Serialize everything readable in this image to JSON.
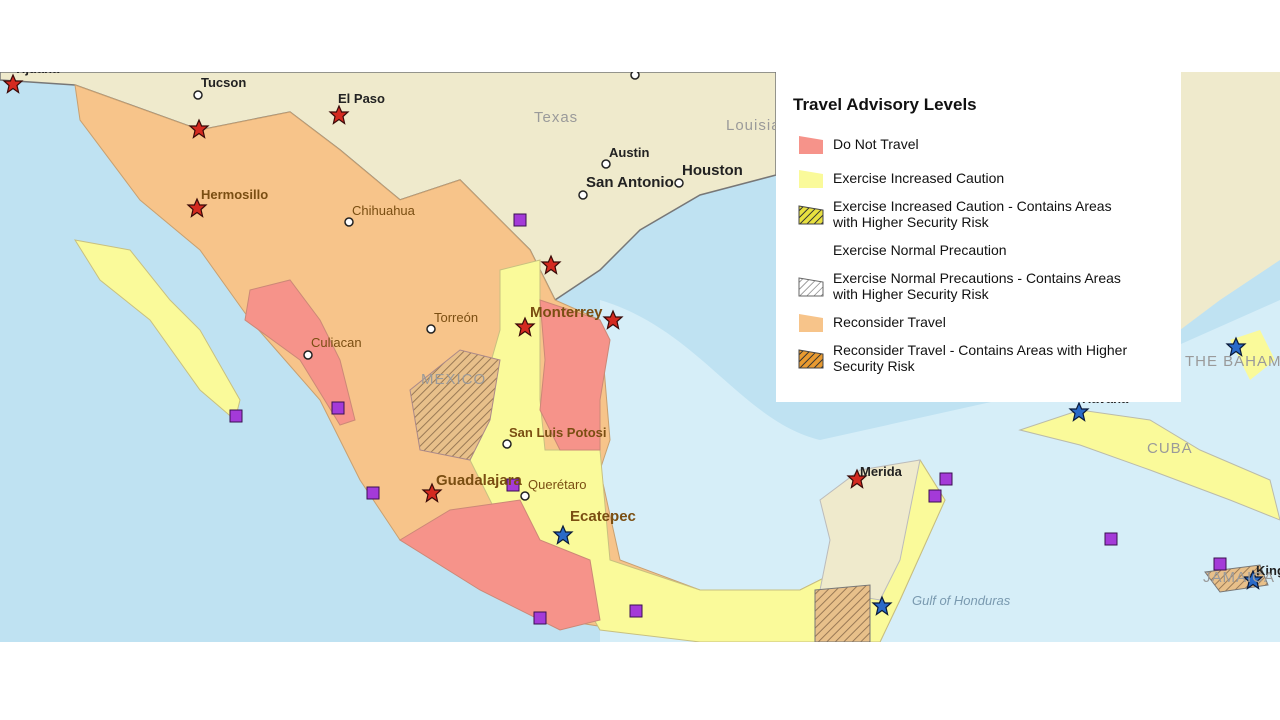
{
  "legend": {
    "title": "Travel Advisory Levels",
    "items": [
      "Do Not Travel",
      "Exercise Increased Caution",
      "Exercise Increased Caution - Contains Areas with Higher Security Risk",
      "Exercise Normal Precaution",
      "Exercise Normal Precautions - Contains Areas with Higher Security Risk",
      "Reconsider Travel",
      "Reconsider Travel - Contains Areas with Higher Security Risk"
    ]
  },
  "map_labels": {
    "cities": [
      "Tijuana",
      "Tucson",
      "El Paso",
      "Austin",
      "Houston",
      "San Antonio",
      "Hermosillo",
      "Chihuahua",
      "Monterrey",
      "Torreón",
      "Culiacan",
      "San Luis Potosi",
      "Guadalajara",
      "Querétaro",
      "Ecatepec",
      "Merida",
      "Havana",
      "Kingston"
    ],
    "regions": [
      "Texas",
      "Louisia",
      "MEXICO",
      "CUBA",
      "THE BAHAMAS",
      "JAMAICA",
      "Gulf of Honduras"
    ]
  }
}
